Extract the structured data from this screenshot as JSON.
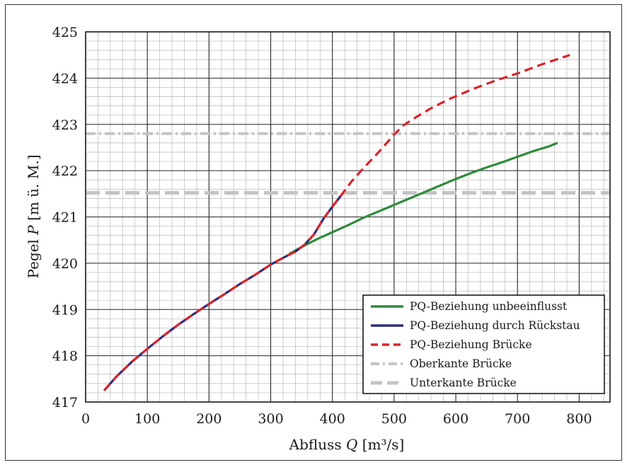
{
  "chart_data": {
    "type": "line",
    "xlabel": "Abfluss",
    "xlabel_var": "Q",
    "xlabel_unit": "[m³/s]",
    "ylabel": "Pegel",
    "ylabel_var": "P",
    "ylabel_unit": "[m ü. M.]",
    "xlim": [
      0,
      850
    ],
    "ylim": [
      417,
      425
    ],
    "xticks": [
      0,
      100,
      200,
      300,
      400,
      500,
      600,
      700,
      800
    ],
    "yticks": [
      417,
      418,
      419,
      420,
      421,
      422,
      423,
      424,
      425
    ],
    "grid": true,
    "legend_position": "bottom-right",
    "series": [
      {
        "name": "PQ-Beziehung unbeeinflusst",
        "color": "#2e8b3a",
        "style": "solid",
        "x": [
          330,
          350,
          375,
          400,
          425,
          450,
          475,
          500,
          525,
          550,
          575,
          600,
          625,
          650,
          675,
          700,
          725,
          750,
          765
        ],
        "y": [
          420.2,
          420.35,
          420.52,
          420.67,
          420.82,
          420.98,
          421.12,
          421.26,
          421.4,
          421.54,
          421.68,
          421.82,
          421.95,
          422.07,
          422.18,
          422.3,
          422.42,
          422.52,
          422.6
        ]
      },
      {
        "name": "PQ-Beziehung durch Rückstau",
        "color": "#2b2d7c",
        "style": "solid",
        "x": [
          30,
          50,
          75,
          100,
          125,
          150,
          175,
          200,
          225,
          250,
          275,
          300,
          325,
          340,
          355,
          370,
          385,
          400,
          415
        ],
        "y": [
          417.25,
          417.55,
          417.87,
          418.15,
          418.42,
          418.67,
          418.9,
          419.12,
          419.33,
          419.55,
          419.75,
          419.97,
          420.15,
          420.25,
          420.4,
          420.62,
          420.95,
          421.22,
          421.48
        ]
      },
      {
        "name": "PQ-Beziehung Brücke",
        "color": "#d8252b",
        "style": "dashed",
        "x": [
          30,
          50,
          75,
          100,
          125,
          150,
          175,
          200,
          225,
          250,
          275,
          300,
          325,
          340,
          355,
          370,
          385,
          400,
          415,
          430,
          450,
          475,
          500,
          515,
          535,
          560,
          590,
          625,
          665,
          700,
          740,
          785
        ],
        "y": [
          417.25,
          417.55,
          417.87,
          418.15,
          418.42,
          418.67,
          418.9,
          419.12,
          419.33,
          419.55,
          419.75,
          419.97,
          420.15,
          420.25,
          420.4,
          420.62,
          420.95,
          421.22,
          421.48,
          421.75,
          422.05,
          422.4,
          422.78,
          422.98,
          423.15,
          423.35,
          423.55,
          423.75,
          423.95,
          424.1,
          424.3,
          424.5
        ]
      },
      {
        "name": "Oberkante Brücke",
        "color": "#c4c4c4",
        "style": "dash-dot",
        "x": [
          0,
          850
        ],
        "y": [
          422.8,
          422.8
        ]
      },
      {
        "name": "Unterkante Brücke",
        "color": "#c4c4c4",
        "style": "dashed-thick",
        "x": [
          0,
          850
        ],
        "y": [
          421.52,
          421.52
        ]
      }
    ]
  }
}
